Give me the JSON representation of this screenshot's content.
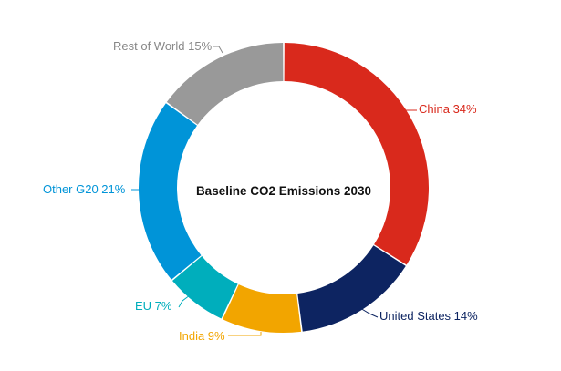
{
  "chart_data": {
    "type": "pie",
    "style": "donut",
    "title": "Baseline CO2 Emissions 2030",
    "start_angle_deg": 0,
    "direction": "clockwise",
    "slices": [
      {
        "label": "China",
        "value": 34,
        "display": "China 34%",
        "color": "#d9291c",
        "label_color": "#d9291c"
      },
      {
        "label": "United States",
        "value": 14,
        "display": "United States 14%",
        "color": "#0d2461",
        "label_color": "#0d2461"
      },
      {
        "label": "India",
        "value": 9,
        "display": "India 9%",
        "color": "#f2a500",
        "label_color": "#f2a500"
      },
      {
        "label": "EU",
        "value": 7,
        "display": "EU 7%",
        "color": "#00aebc",
        "label_color": "#00aebc"
      },
      {
        "label": "Other G20",
        "value": 21,
        "display": "Other G20 21%",
        "color": "#0094d8",
        "label_color": "#0094d8"
      },
      {
        "label": "Rest of World",
        "value": 15,
        "display": "Rest of World 15%",
        "color": "#999999",
        "label_color": "#888888"
      }
    ]
  }
}
